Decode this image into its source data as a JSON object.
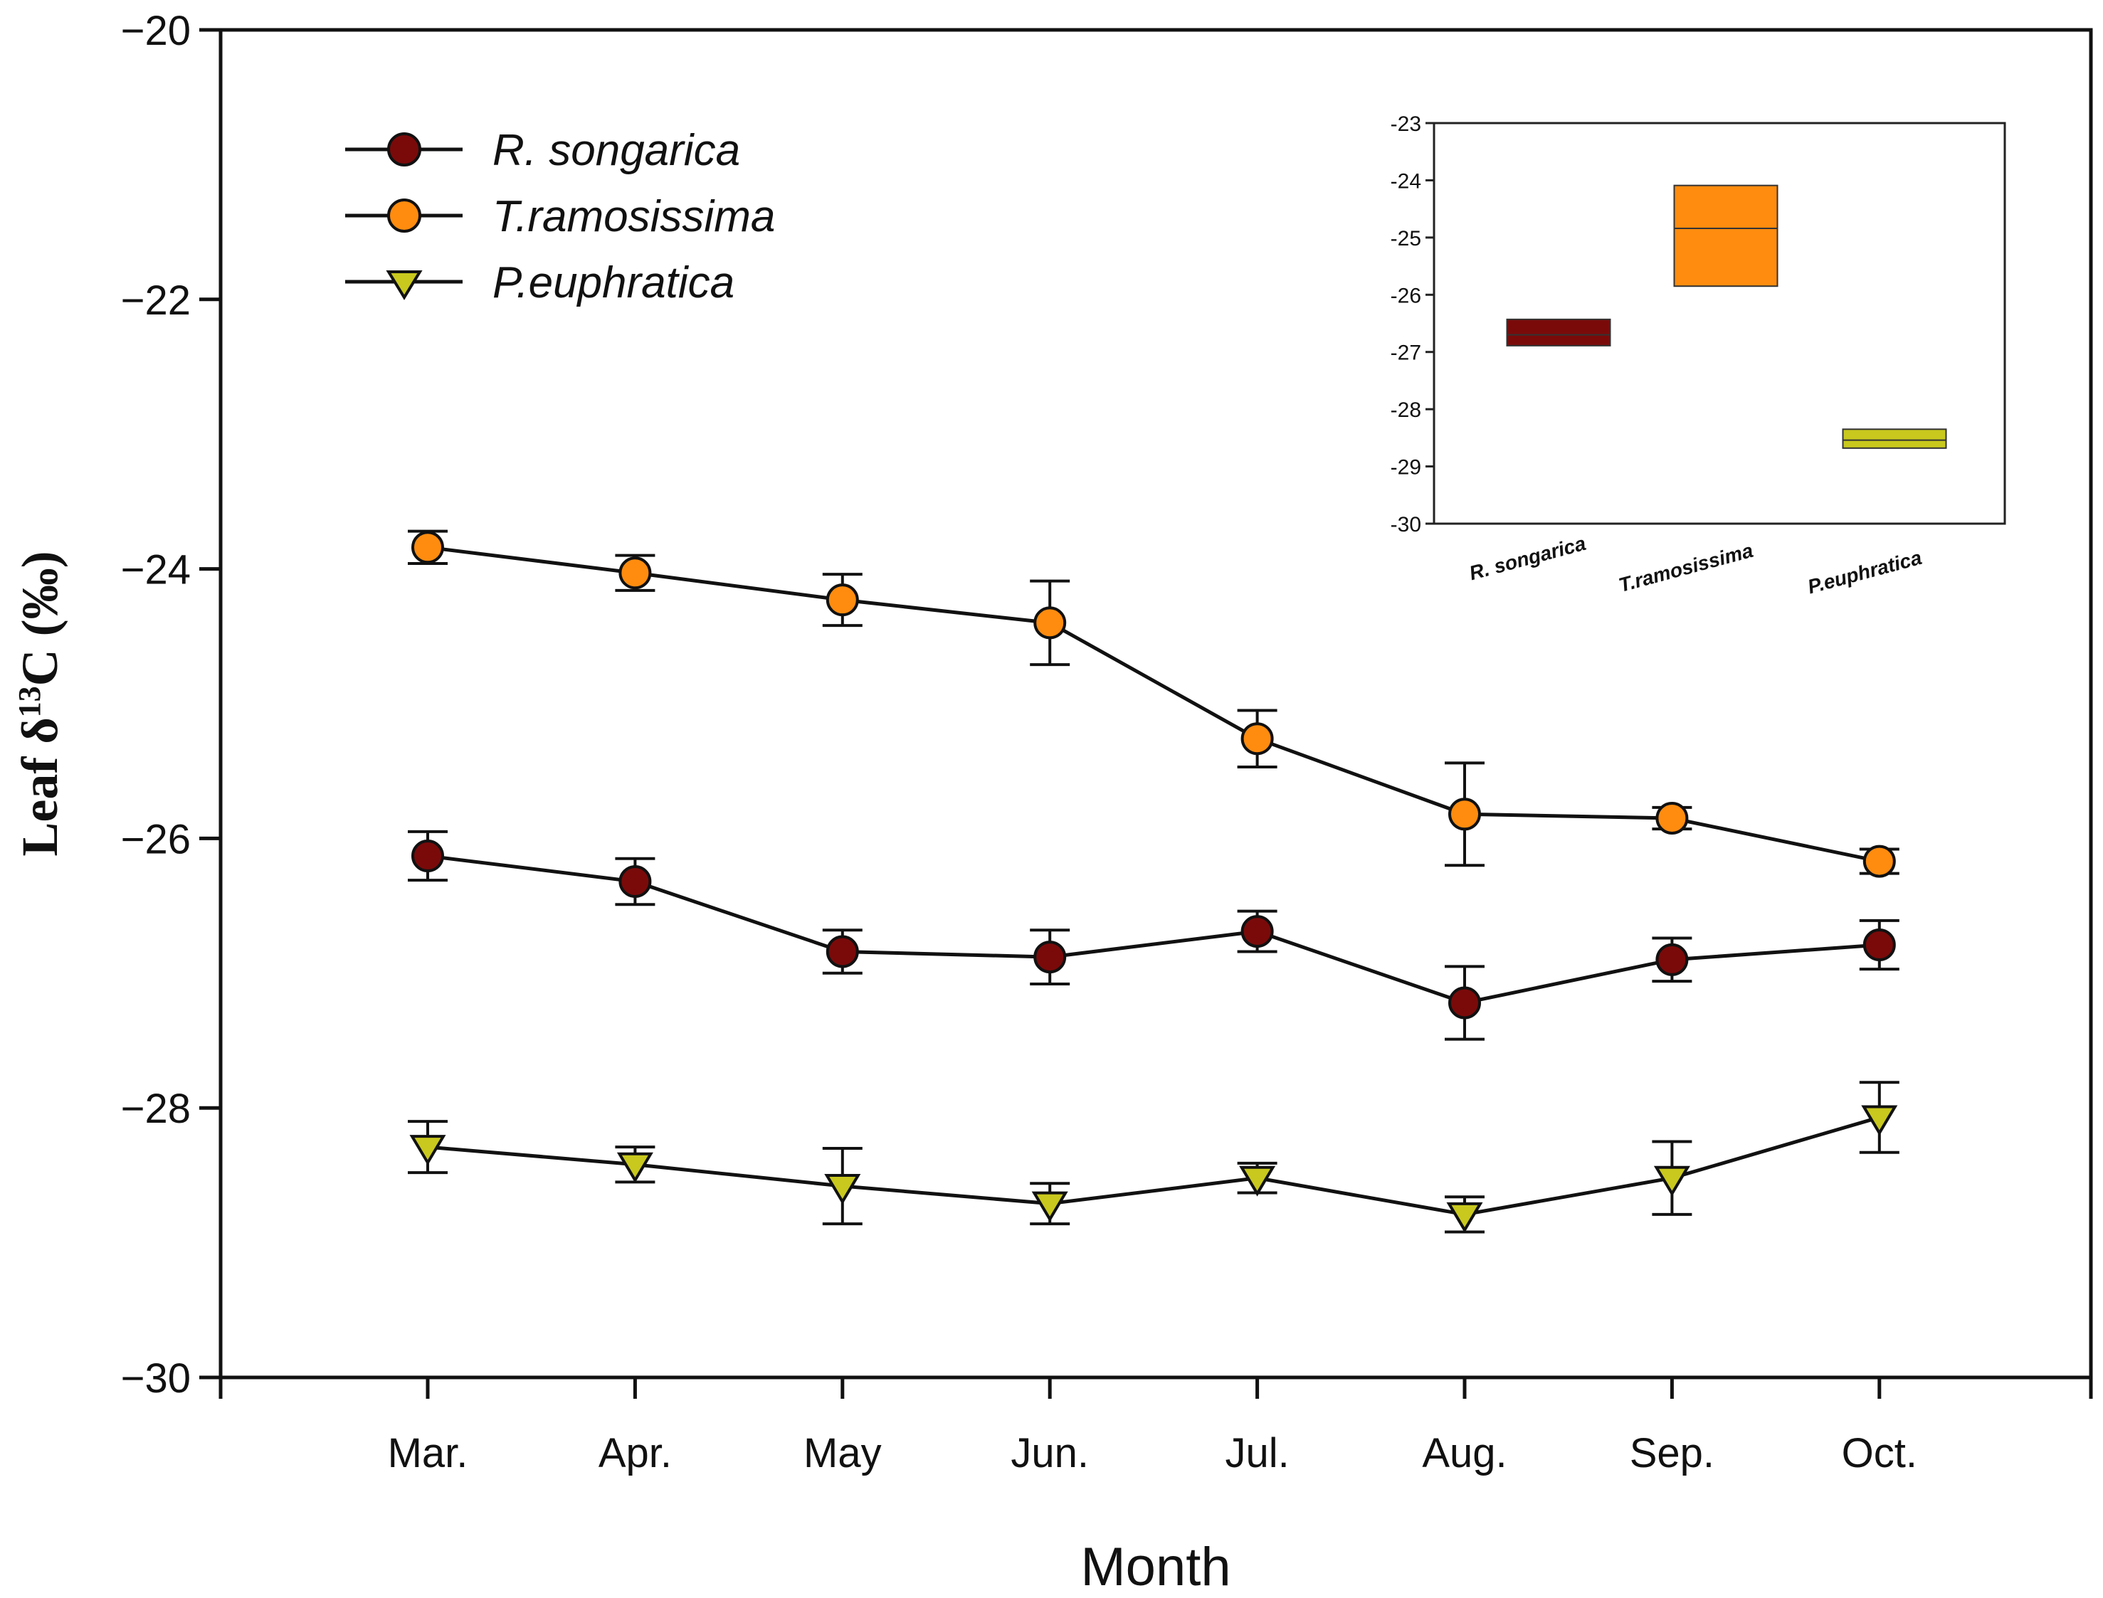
{
  "chart_data": [
    {
      "type": "line",
      "title": "",
      "xlabel": "Month",
      "ylabel_prefix": "Leaf δ",
      "ylabel_sup": "13",
      "ylabel_suffix": "C (‰)",
      "categories": [
        "Mar.",
        "Apr.",
        "May",
        "Jun.",
        "Jul.",
        "Aug.",
        "Sep.",
        "Oct."
      ],
      "ylim": [
        -30,
        -20
      ],
      "yticks": [
        -30,
        -28,
        -26,
        -24,
        -22,
        -20
      ],
      "ytick_labels": [
        "−30",
        "−28",
        "−26",
        "−24",
        "−22",
        "−20"
      ],
      "grid": false,
      "legend_position": "top-left",
      "series": [
        {
          "name": "R. songarica",
          "marker": "circle",
          "color": "#7a0a0a",
          "values": [
            -26.13,
            -26.32,
            -26.84,
            -26.88,
            -26.69,
            -27.22,
            -26.9,
            -26.79
          ],
          "errors": [
            0.18,
            0.17,
            0.16,
            0.2,
            0.15,
            0.27,
            0.16,
            0.18
          ]
        },
        {
          "name": "T.ramosissima",
          "marker": "circle",
          "color": "#ff8c0f",
          "values": [
            -23.84,
            -24.03,
            -24.23,
            -24.4,
            -25.26,
            -25.82,
            -25.85,
            -26.17
          ],
          "errors": [
            0.12,
            0.13,
            0.19,
            0.31,
            0.21,
            0.38,
            0.08,
            0.09
          ]
        },
        {
          "name": "P.euphratica",
          "marker": "triangle-down",
          "color": "#c8c81e",
          "values": [
            -28.29,
            -28.42,
            -28.58,
            -28.71,
            -28.52,
            -28.79,
            -28.52,
            -28.07
          ],
          "errors": [
            0.19,
            0.13,
            0.28,
            0.15,
            0.11,
            0.13,
            0.27,
            0.26
          ]
        }
      ]
    },
    {
      "type": "box",
      "title": "",
      "categories": [
        "R. songarica",
        "T.ramosissima",
        "P.euphratica"
      ],
      "ylim": [
        -30,
        -23
      ],
      "yticks": [
        -30,
        -29,
        -28,
        -27,
        -26,
        -25,
        -24,
        -23
      ],
      "ytick_labels": [
        "-30",
        "-29",
        "-28",
        "-27",
        "-26",
        "-25",
        "-24",
        "-23"
      ],
      "boxes": [
        {
          "q1": -26.89,
          "median": -26.7,
          "q3": -26.43,
          "color": "#7a0a0a"
        },
        {
          "q1": -25.85,
          "median": -24.84,
          "q3": -24.09,
          "color": "#ff8c0f"
        },
        {
          "q1": -28.68,
          "median": -28.54,
          "q3": -28.35,
          "color": "#c8c81e"
        }
      ]
    }
  ]
}
